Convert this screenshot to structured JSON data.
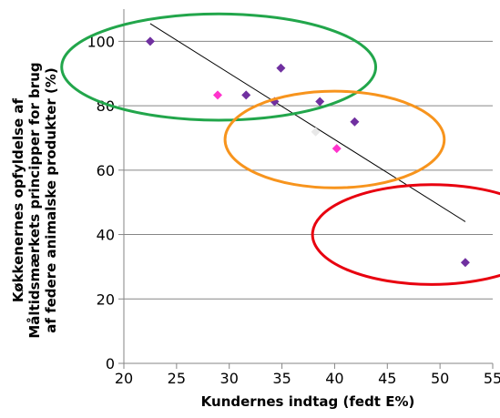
{
  "chart_data": {
    "type": "scatter",
    "xlabel": "Kundernes indtag (fedt E%)",
    "ylabel_lines": [
      "Køkkenernes  opfyldelse af",
      "Måltidsmærkets principper for brug",
      "af federe animalske produkter (%)"
    ],
    "xlim": [
      20,
      55
    ],
    "ylim": [
      0,
      110
    ],
    "xticks": [
      "20",
      "25",
      "30",
      "35",
      "40",
      "45",
      "50",
      "55"
    ],
    "yticks": [
      "0",
      "20",
      "40",
      "60",
      "80",
      "100"
    ],
    "grid": "horizontal",
    "series": [
      {
        "color": "#7030A0",
        "points": [
          {
            "x": 22.5,
            "y": 100
          },
          {
            "x": 31.6,
            "y": 83.3
          },
          {
            "x": 34.3,
            "y": 81.3
          },
          {
            "x": 34.9,
            "y": 91.7
          },
          {
            "x": 38.6,
            "y": 81.3
          },
          {
            "x": 41.9,
            "y": 75
          },
          {
            "x": 52.4,
            "y": 31.3
          }
        ]
      },
      {
        "color": "#FF33CC",
        "points": [
          {
            "x": 28.9,
            "y": 83.3
          },
          {
            "x": 40.2,
            "y": 66.7
          }
        ]
      },
      {
        "color": "#E8E8E8",
        "points": [
          {
            "x": 38.2,
            "y": 71.9
          }
        ]
      }
    ],
    "trendline": {
      "x": [
        22.5,
        52.4
      ],
      "y": [
        105.5,
        44
      ]
    },
    "ellipses": [
      {
        "cx": 29,
        "cy": 92,
        "rx": 14.9,
        "ry": 16.5,
        "color": "#22A64B"
      },
      {
        "cx": 40,
        "cy": 69.5,
        "rx": 10.4,
        "ry": 15,
        "color": "#F7941D"
      },
      {
        "cx": 49.2,
        "cy": 40,
        "rx": 11.3,
        "ry": 15.5,
        "color": "#E8000F"
      }
    ]
  }
}
